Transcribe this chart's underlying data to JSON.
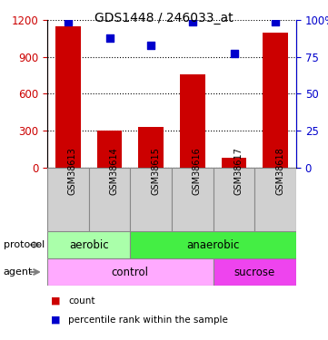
{
  "title": "GDS1448 / 246033_at",
  "samples": [
    "GSM38613",
    "GSM38614",
    "GSM38615",
    "GSM38616",
    "GSM38617",
    "GSM38618"
  ],
  "bar_values": [
    1150,
    305,
    330,
    760,
    80,
    1100
  ],
  "scatter_values": [
    99,
    88,
    83,
    99,
    77,
    99
  ],
  "bar_color": "#cc0000",
  "scatter_color": "#0000cc",
  "ylim_left": [
    0,
    1200
  ],
  "ylim_right": [
    0,
    100
  ],
  "yticks_left": [
    0,
    300,
    600,
    900,
    1200
  ],
  "yticks_right": [
    0,
    25,
    50,
    75,
    100
  ],
  "protocol_labels": [
    {
      "label": "aerobic",
      "start": 0,
      "end": 2,
      "color": "#aaffaa"
    },
    {
      "label": "anaerobic",
      "start": 2,
      "end": 6,
      "color": "#44ee44"
    }
  ],
  "agent_labels": [
    {
      "label": "control",
      "start": 0,
      "end": 4,
      "color": "#ffaaff"
    },
    {
      "label": "sucrose",
      "start": 4,
      "end": 6,
      "color": "#ee44ee"
    }
  ],
  "legend_count_label": "count",
  "legend_percentile_label": "percentile rank within the sample",
  "protocol_row_label": "protocol",
  "agent_row_label": "agent",
  "bar_color_legend": "#cc0000",
  "scatter_color_legend": "#0000cc",
  "tick_label_color_left": "#cc0000",
  "tick_label_color_right": "#0000cc",
  "sample_bg_color": "#d0d0d0",
  "sample_border_color": "#888888"
}
